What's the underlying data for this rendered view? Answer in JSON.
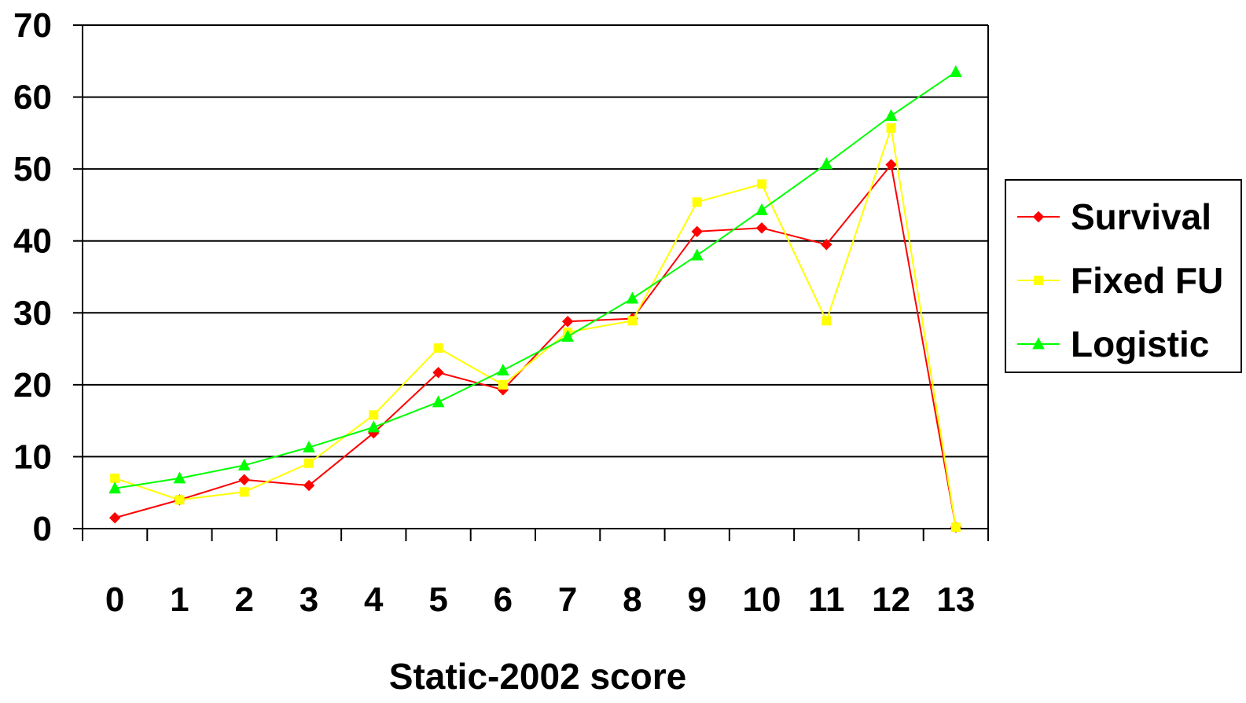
{
  "chart_data": {
    "type": "line",
    "title": "",
    "xlabel": "Static-2002 score",
    "ylabel": "",
    "categories": [
      "0",
      "1",
      "2",
      "3",
      "4",
      "5",
      "6",
      "7",
      "8",
      "9",
      "10",
      "11",
      "12",
      "13"
    ],
    "ylim": [
      0,
      70
    ],
    "yticks": [
      "0",
      "10",
      "20",
      "30",
      "40",
      "50",
      "60",
      "70"
    ],
    "grid": "horizontal",
    "legend_position": "right",
    "series": [
      {
        "name": "Survival",
        "color": "#ff0000",
        "marker": "diamond",
        "values": [
          1.5,
          4.0,
          6.8,
          6.0,
          13.3,
          21.7,
          19.3,
          28.8,
          29.2,
          41.3,
          41.8,
          39.5,
          50.6,
          0.2
        ]
      },
      {
        "name": "Fixed FU",
        "color": "#ffff00",
        "marker": "square",
        "values": [
          7.0,
          4.0,
          5.1,
          9.1,
          15.8,
          25.1,
          20.0,
          27.3,
          28.9,
          45.4,
          47.9,
          28.9,
          55.7,
          0.2
        ]
      },
      {
        "name": "Logistic",
        "color": "#00ff00",
        "marker": "triangle",
        "values": [
          5.6,
          7.0,
          8.8,
          11.3,
          14.1,
          17.6,
          22.0,
          26.7,
          32.0,
          38.0,
          44.3,
          50.7,
          57.4,
          63.5
        ]
      }
    ]
  }
}
